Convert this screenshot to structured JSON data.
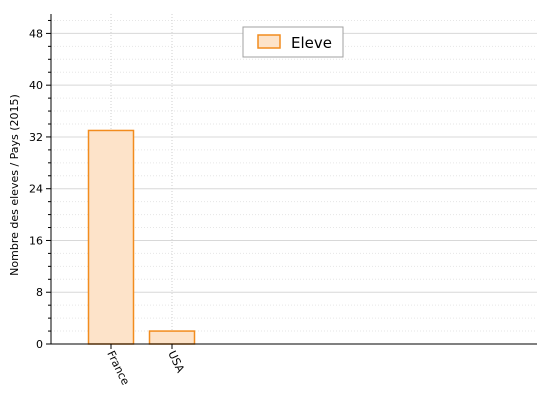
{
  "chart_data": {
    "type": "bar",
    "title": "",
    "xlabel": "",
    "ylabel": "Nombre des eleves / Pays (2015)",
    "categories": [
      "France",
      "USA"
    ],
    "series": [
      {
        "name": "Eleve",
        "values": [
          33,
          2
        ]
      }
    ],
    "ylim": [
      0,
      51
    ],
    "y_ticks": [
      0,
      8,
      16,
      24,
      32,
      40,
      48
    ],
    "grid": true,
    "legend": "top-center",
    "colors": {
      "bar_fill": "#fde3c9",
      "bar_stroke": "#f28c1e",
      "grid": "#d8d8d8",
      "axis": "#000000"
    }
  }
}
